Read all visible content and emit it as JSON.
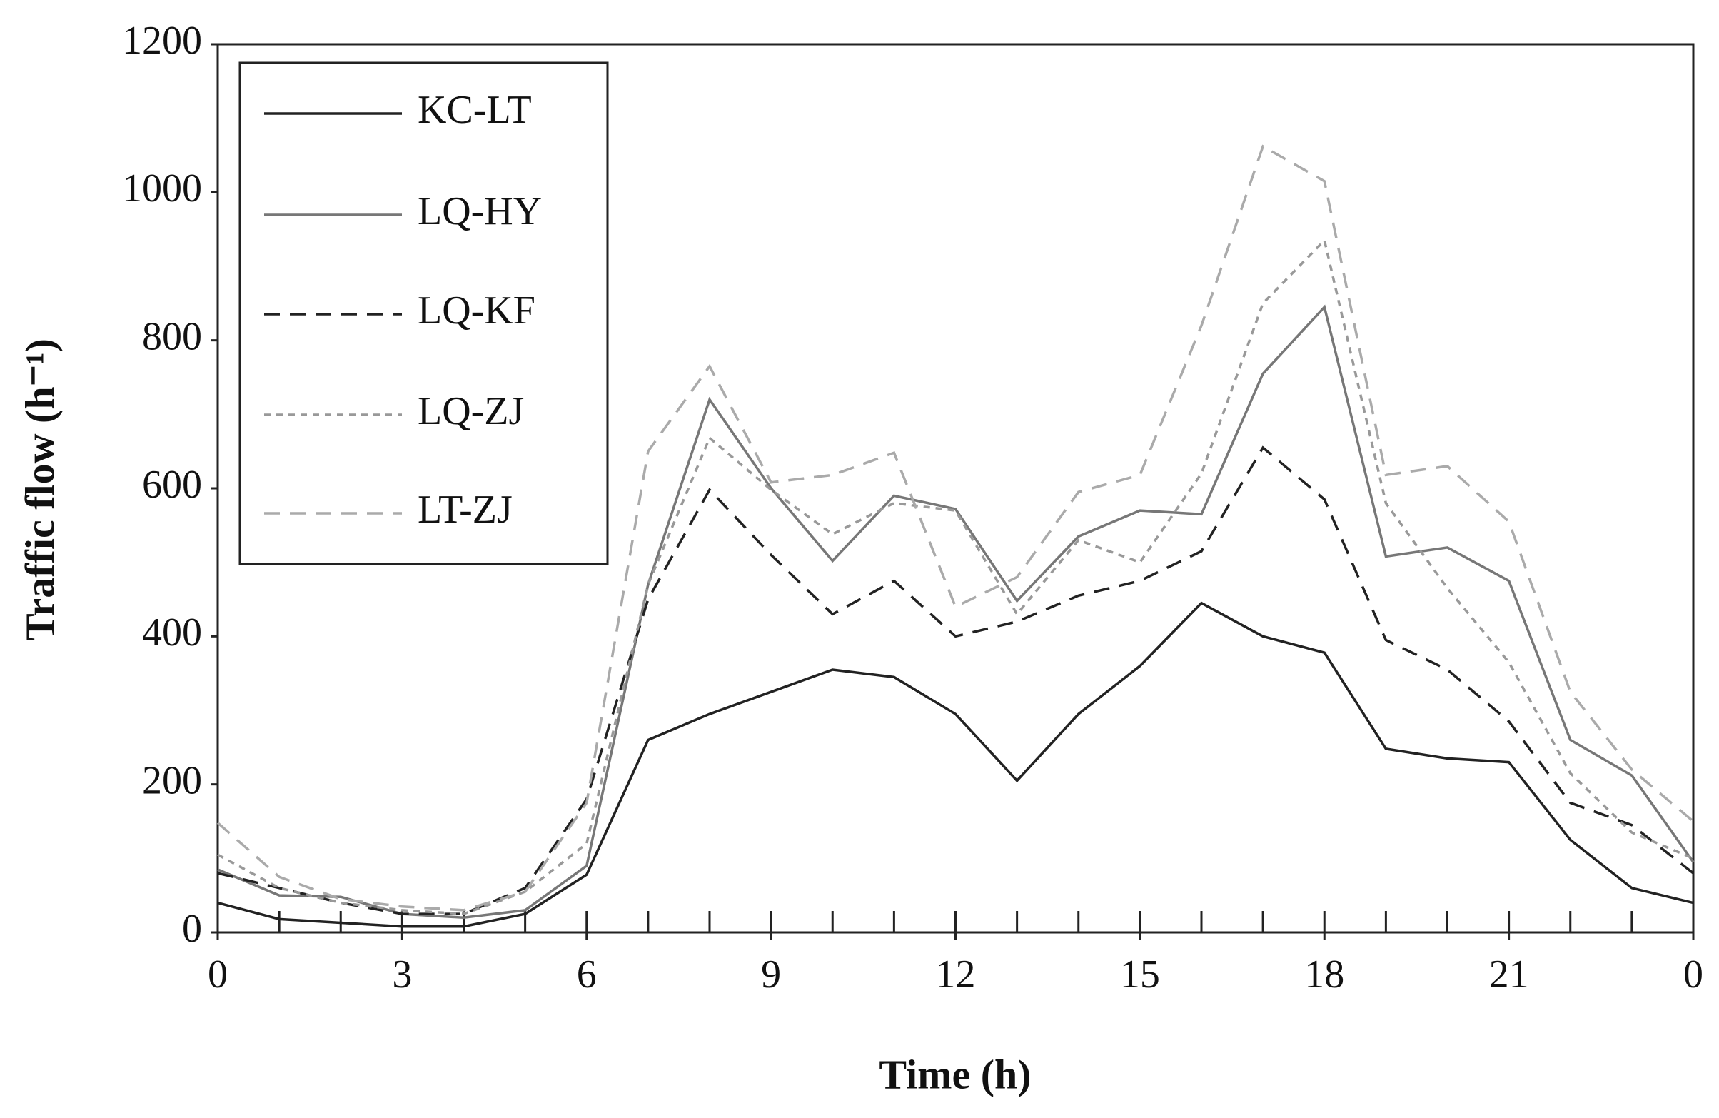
{
  "chart_data": {
    "type": "line",
    "xlabel": "Time (h)",
    "ylabel": "Traffic flow (h⁻¹)",
    "x": [
      0,
      1,
      2,
      3,
      4,
      5,
      6,
      7,
      8,
      9,
      10,
      11,
      12,
      13,
      14,
      15,
      16,
      17,
      18,
      19,
      20,
      21,
      22,
      23,
      24
    ],
    "xlim": [
      0,
      24
    ],
    "xticks": [
      0,
      3,
      6,
      9,
      12,
      15,
      18,
      21,
      {
        "value": 24,
        "label": "0"
      }
    ],
    "ylim": [
      0,
      1200
    ],
    "yticks": [
      0,
      200,
      400,
      600,
      800,
      1000,
      1200
    ],
    "grid": false,
    "legend": "upper left",
    "series": [
      {
        "name": "KC-LT",
        "color": "#222222",
        "dash": "solid",
        "values": [
          40,
          18,
          13,
          8,
          8,
          25,
          78,
          260,
          295,
          325,
          355,
          345,
          295,
          205,
          295,
          360,
          445,
          400,
          378,
          248,
          235,
          230,
          125,
          60,
          40
        ]
      },
      {
        "name": "LQ-HY",
        "color": "#777777",
        "dash": "solid",
        "values": [
          85,
          50,
          48,
          25,
          20,
          30,
          90,
          470,
          720,
          600,
          502,
          590,
          572,
          448,
          535,
          570,
          565,
          755,
          845,
          508,
          520,
          475,
          260,
          212,
          95
        ]
      },
      {
        "name": "LQ-KF",
        "color": "#222222",
        "dash": "dashed",
        "values": [
          80,
          60,
          40,
          25,
          25,
          60,
          180,
          450,
          598,
          510,
          430,
          475,
          400,
          420,
          455,
          475,
          515,
          655,
          585,
          395,
          355,
          285,
          175,
          145,
          80
        ]
      },
      {
        "name": "LQ-ZJ",
        "color": "#999999",
        "dash": "dotted",
        "values": [
          105,
          60,
          40,
          30,
          25,
          55,
          120,
          470,
          668,
          598,
          538,
          580,
          570,
          430,
          530,
          500,
          620,
          850,
          935,
          580,
          465,
          365,
          215,
          135,
          100
        ]
      },
      {
        "name": "LT-ZJ",
        "color": "#aaaaaa",
        "dash": "dashed",
        "values": [
          148,
          75,
          45,
          35,
          30,
          55,
          175,
          650,
          765,
          608,
          618,
          648,
          440,
          480,
          595,
          618,
          820,
          1062,
          1015,
          618,
          630,
          555,
          325,
          220,
          150
        ]
      }
    ]
  }
}
